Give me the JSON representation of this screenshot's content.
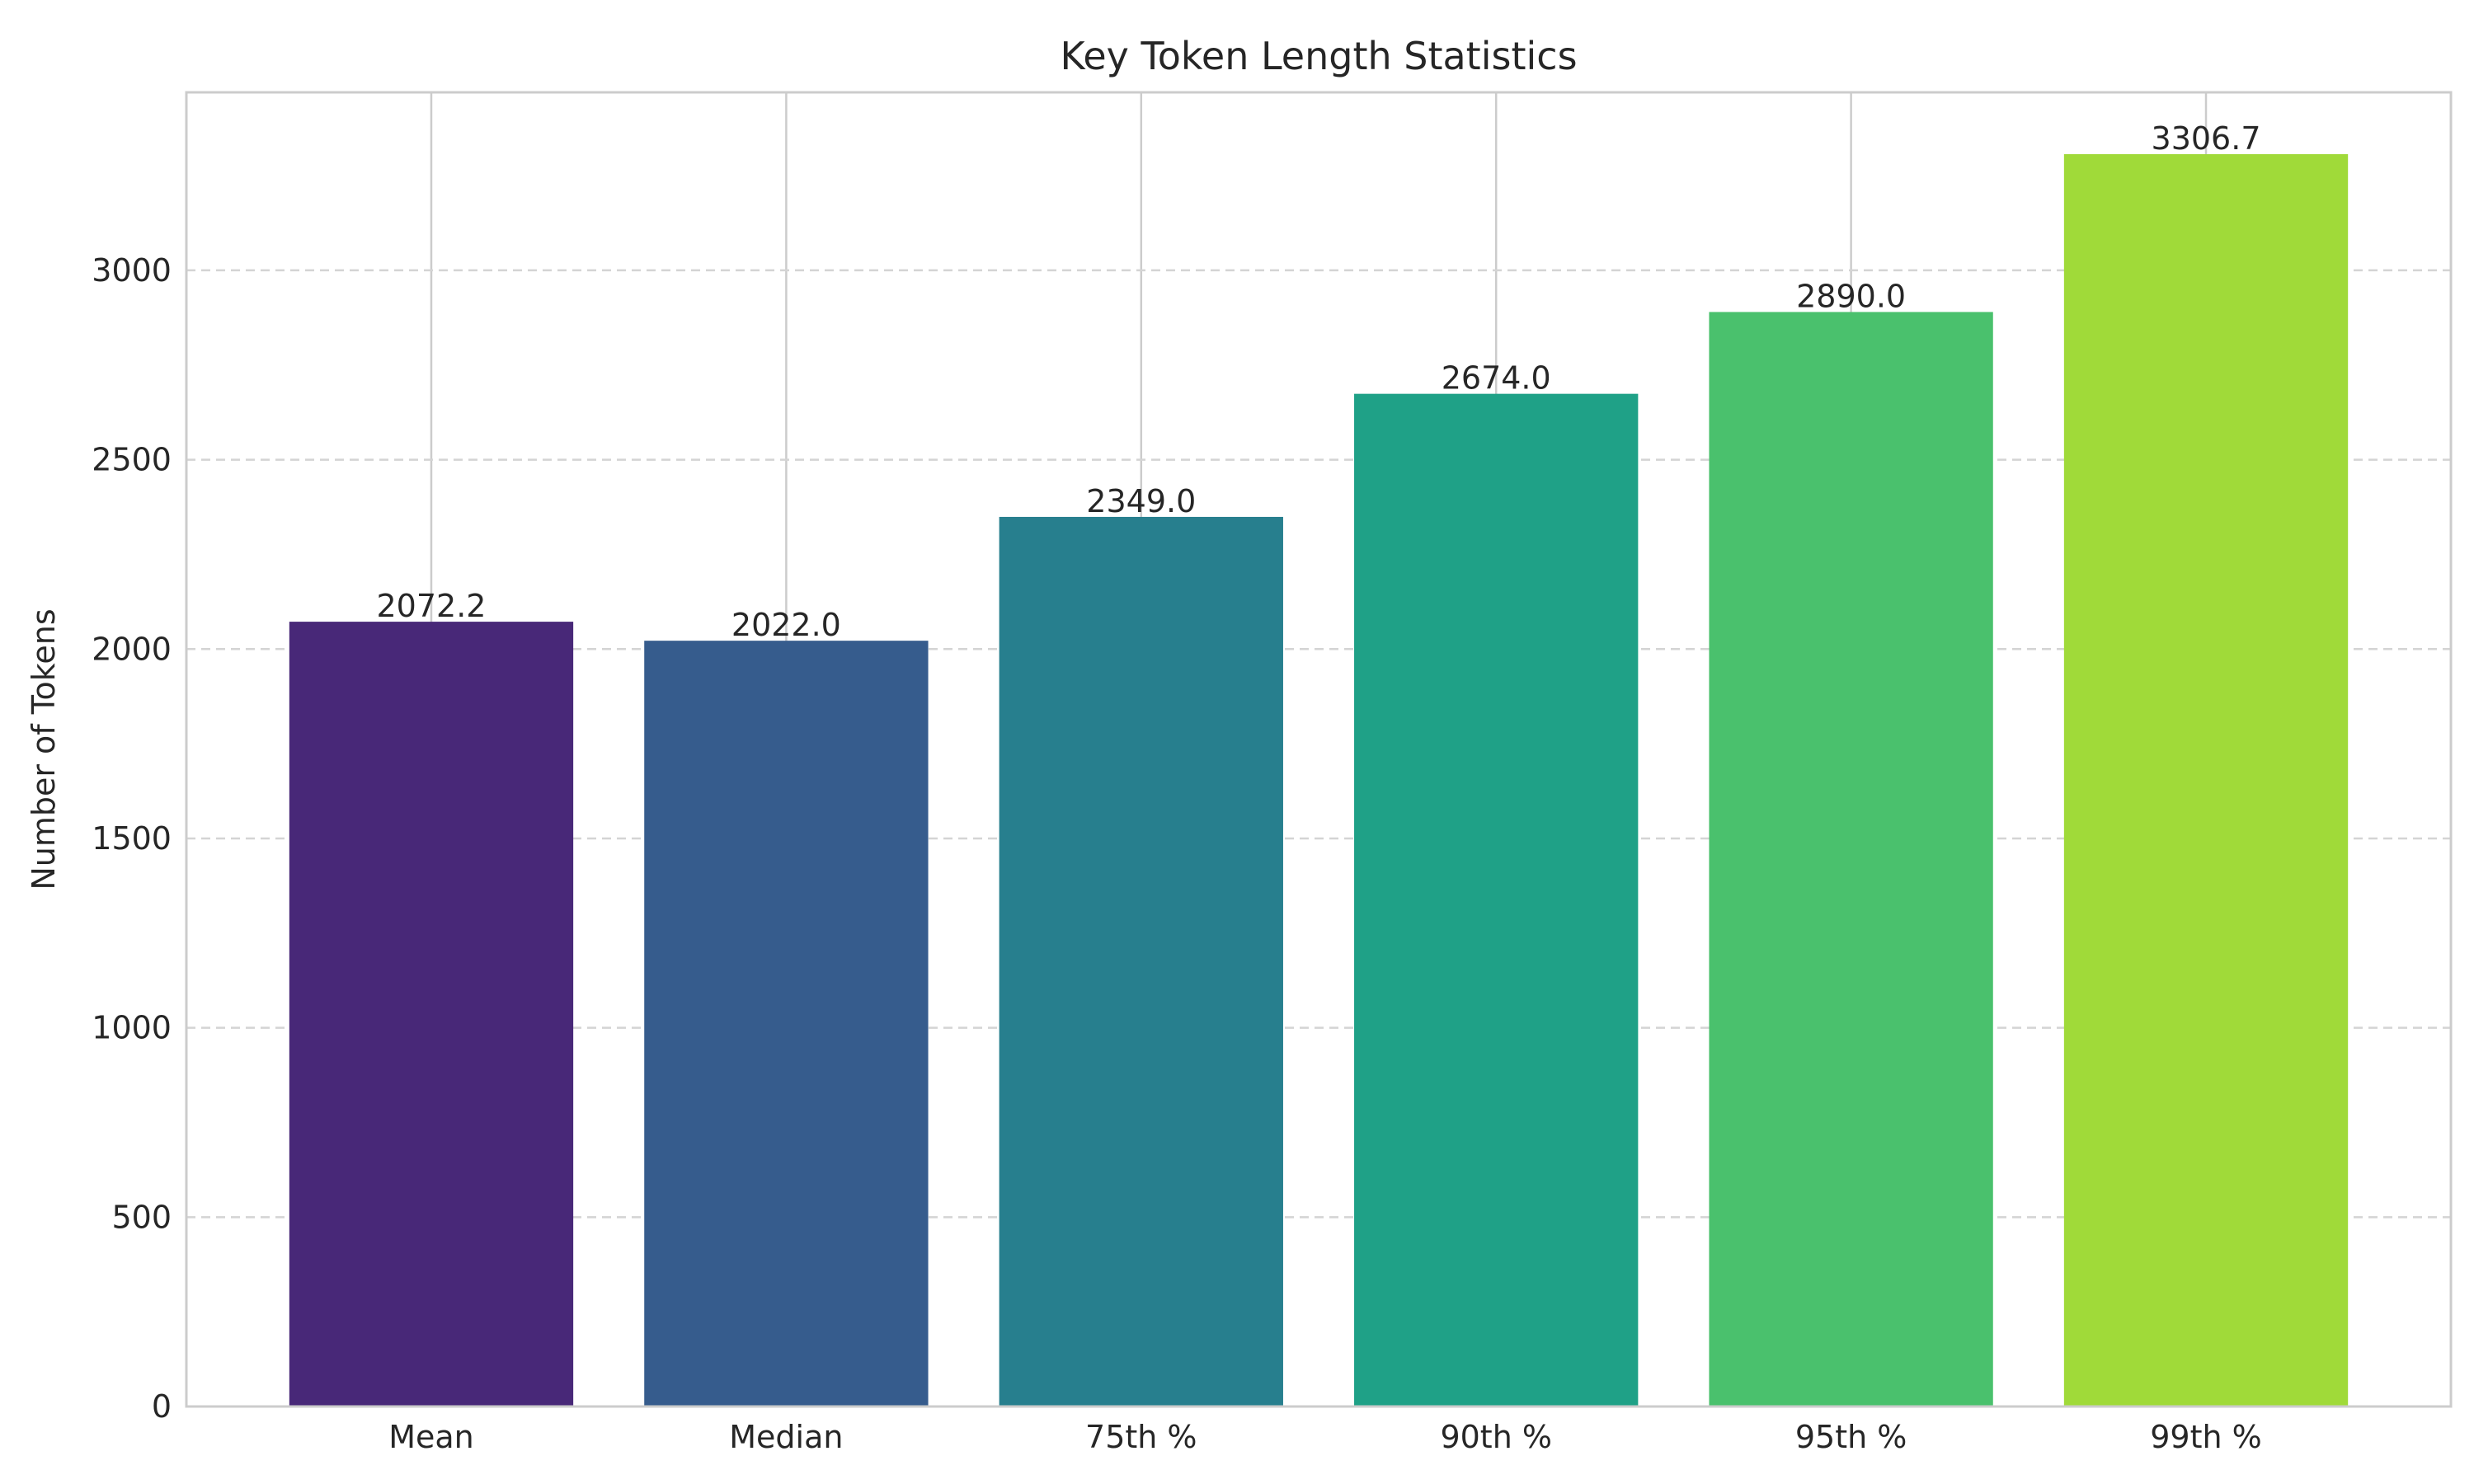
{
  "chart_data": {
    "type": "bar",
    "title": "Key Token Length Statistics",
    "xlabel": "",
    "ylabel": "Number of Tokens",
    "categories": [
      "Mean",
      "Median",
      "75th %",
      "90th %",
      "95th %",
      "99th %"
    ],
    "values": [
      2072.2,
      2022.0,
      2349.0,
      2674.0,
      2890.0,
      3306.7
    ],
    "data_labels": [
      "2072.2",
      "2022.0",
      "2349.0",
      "2674.0",
      "2890.0",
      "3306.7"
    ],
    "bar_colors": [
      "#482878",
      "#365c8d",
      "#277f8e",
      "#1fa187",
      "#4ac16d",
      "#a0da39"
    ],
    "ylim": [
      0,
      3470
    ],
    "yticks": [
      0,
      500,
      1000,
      1500,
      2000,
      2500,
      3000
    ],
    "ytick_labels": [
      "0",
      "500",
      "1000",
      "1500",
      "2000",
      "2500",
      "3000"
    ],
    "grid": {
      "y": "dashed",
      "x": "solid"
    },
    "legend": "none"
  }
}
